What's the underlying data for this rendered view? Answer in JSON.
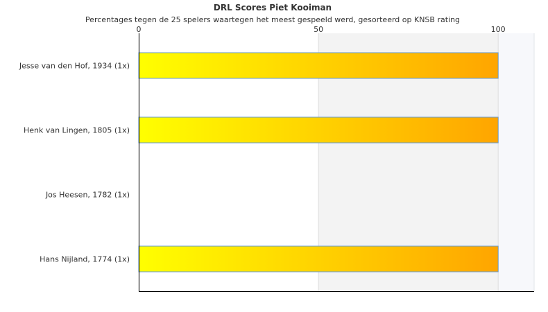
{
  "chart_data": {
    "type": "bar",
    "orientation": "horizontal",
    "title": "DRL Scores Piet Kooiman",
    "subtitle": "Percentages tegen de 25 spelers waartegen het meest gespeeld werd, gesorteerd op KNSB rating",
    "categories": [
      "Jesse van den Hof, 1934 (1x)",
      "Henk van Lingen, 1805 (1x)",
      "Jos Heesen, 1782 (1x)",
      "Hans Nijland, 1774 (1x)"
    ],
    "values": [
      100,
      100,
      0,
      100
    ],
    "xlim": [
      0,
      110
    ],
    "xticks": [
      0,
      50,
      100
    ],
    "tick_labels": [
      "0",
      "50",
      "100"
    ],
    "bar_gradient": [
      "#ffff00",
      "#ffa500"
    ],
    "bar_border": "#6699cc"
  }
}
